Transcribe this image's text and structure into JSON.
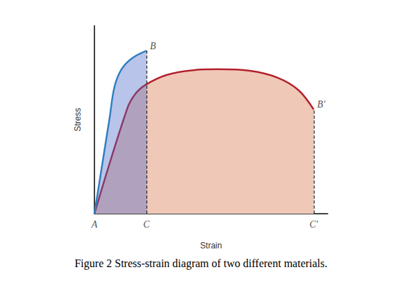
{
  "chart_data": {
    "type": "line",
    "title": "Figure 2 Stress-strain diagram of two different materials.",
    "x_label": "Strain",
    "y_label": "Stress",
    "xlim": [
      0,
      100
    ],
    "ylim": [
      0,
      100
    ],
    "tick_labels": false,
    "grid": false,
    "series": [
      {
        "color": "#2f7fc1",
        "x": [
          0,
          6.5,
          8.6,
          11.6,
          16.1,
          22.3
        ],
        "values": [
          0,
          50.9,
          67.5,
          76.8,
          82.7,
          86.7
        ]
      },
      {
        "color": "#b3202a",
        "x": [
          0,
          14,
          17.6,
          22,
          31,
          42.9,
          53.3,
          66.7,
          78.6,
          87.5,
          94
        ],
        "values": [
          0,
          55.7,
          63.8,
          68.6,
          73.8,
          76.4,
          76.8,
          76,
          72.3,
          65.7,
          55.4
        ]
      }
    ],
    "annotations": [
      {
        "text": "A",
        "x": 0,
        "y": 0
      },
      {
        "text": "C",
        "x": 22.3,
        "y": 0
      },
      {
        "text": "C′",
        "x": 94,
        "y": 0
      },
      {
        "text": "B",
        "x": 22.3,
        "y": 86.7
      },
      {
        "text": "B′",
        "x": 94,
        "y": 55.4
      }
    ]
  }
}
